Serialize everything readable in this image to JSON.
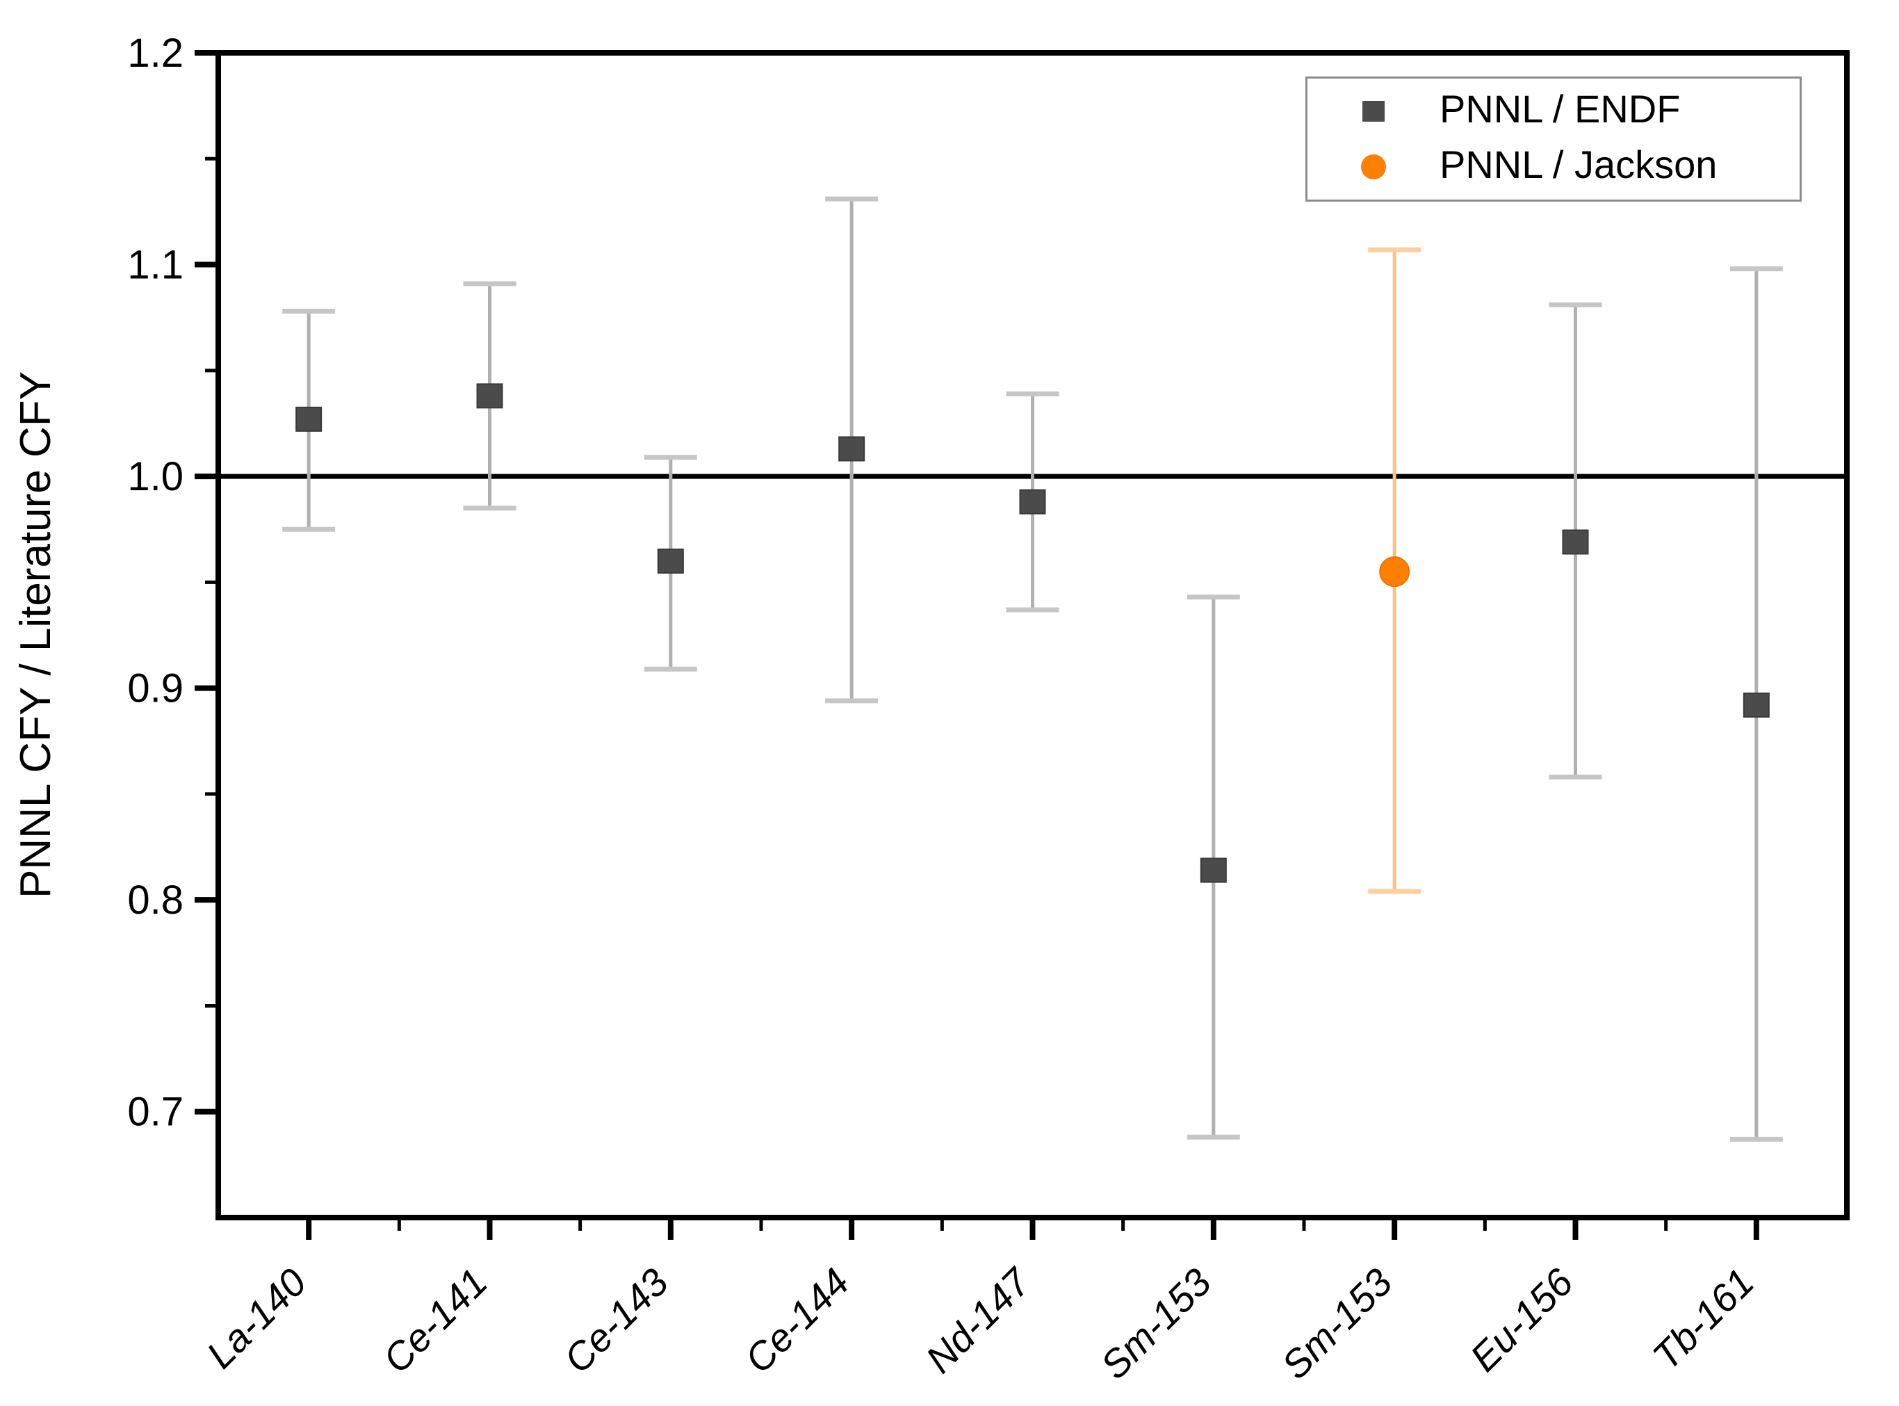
{
  "chart_data": {
    "type": "scatter",
    "title": "",
    "xlabel": "",
    "ylabel": "PNNL CFY / Literature CFY",
    "categories": [
      "La-140",
      "Ce-141",
      "Ce-143",
      "Ce-144",
      "Nd-147",
      "Sm-153",
      "Sm-153",
      "Eu-156",
      "Tb-161"
    ],
    "ylim": [
      0.65,
      1.2
    ],
    "grid": false,
    "legend_position": "top-right",
    "yticks": [
      {
        "value": 1.2,
        "label": "1.2"
      },
      {
        "value": 1.1,
        "label": "1.1"
      },
      {
        "value": 1.0,
        "label": "1.0"
      },
      {
        "value": 0.9,
        "label": "0.9"
      },
      {
        "value": 0.8,
        "label": "0.8"
      },
      {
        "value": 0.7,
        "label": "0.7"
      }
    ],
    "y_minor_ticks": [
      1.15,
      1.05,
      0.95,
      0.85,
      0.75
    ],
    "reference_line": {
      "y": 1.0,
      "color": "#000000"
    },
    "axis_color": "#000000",
    "series": [
      {
        "name": "PNNL / ENDF",
        "marker": "square",
        "color": "#4b4b4b",
        "marker_edge_color": "#3a3a3a",
        "error_color": "#b0b0b0",
        "cap_color": "#c6c6c6",
        "points": [
          {
            "category": "La-140",
            "x": 1,
            "y": 1.027,
            "y_hi": 1.078,
            "y_lo": 0.975
          },
          {
            "category": "Ce-141",
            "x": 2,
            "y": 1.038,
            "y_hi": 1.091,
            "y_lo": 0.985
          },
          {
            "category": "Ce-143",
            "x": 3,
            "y": 0.96,
            "y_hi": 1.009,
            "y_lo": 0.909
          },
          {
            "category": "Ce-144",
            "x": 4,
            "y": 1.013,
            "y_hi": 1.131,
            "y_lo": 0.894
          },
          {
            "category": "Nd-147",
            "x": 5,
            "y": 0.988,
            "y_hi": 1.039,
            "y_lo": 0.937
          },
          {
            "category": "Sm-153",
            "x": 6,
            "y": 0.814,
            "y_hi": 0.943,
            "y_lo": 0.688
          },
          {
            "category": "Eu-156",
            "x": 8,
            "y": 0.969,
            "y_hi": 1.081,
            "y_lo": 0.858
          },
          {
            "category": "Tb-161",
            "x": 9,
            "y": 0.892,
            "y_hi": 1.098,
            "y_lo": 0.687
          }
        ]
      },
      {
        "name": "PNNL / Jackson",
        "marker": "circle",
        "color": "#ff7f00",
        "marker_edge_color": "#f07300",
        "error_color": "#ffbf80",
        "cap_color": "#ffcf9e",
        "points": [
          {
            "category": "Sm-153",
            "x": 7,
            "y": 0.955,
            "y_hi": 1.107,
            "y_lo": 0.804
          }
        ]
      }
    ]
  },
  "legend": {
    "entries": [
      {
        "label": "PNNL / ENDF"
      },
      {
        "label": "PNNL / Jackson"
      }
    ]
  }
}
